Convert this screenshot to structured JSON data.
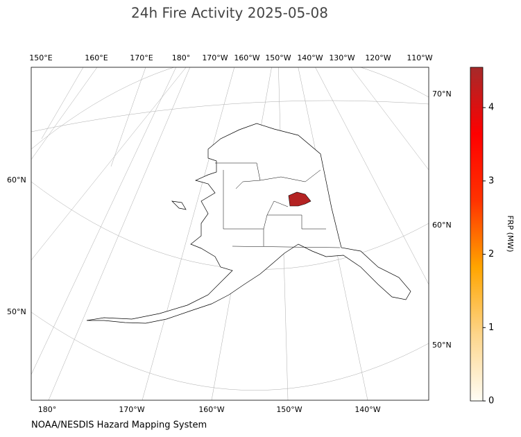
{
  "title": "24h Fire Activity 2025-05-08",
  "graticule": {
    "top": [
      "150°E",
      "160°E",
      "170°E",
      "180°",
      "170°W",
      "160°W",
      "150°W",
      "140°W",
      "130°W",
      "120°W",
      "110°W"
    ],
    "right": [
      "70°N",
      "60°N",
      "50°N"
    ],
    "left": [
      "60°N",
      "50°N"
    ],
    "bottom": [
      "180°",
      "170°W",
      "160°W",
      "150°W",
      "140°W"
    ]
  },
  "colorbar": {
    "label": "FRP (MW)",
    "lim": [
      0,
      4.55
    ],
    "ticks": [
      0,
      1,
      2,
      3,
      4
    ],
    "colors": [
      "#fffdf5",
      "#fdd58a",
      "#ffa500",
      "#ff3300",
      "#ff0000",
      "#a52a2a"
    ]
  },
  "fires": [
    {
      "frp": 4.4
    }
  ],
  "credit": "NOAA/NESDIS Hazard Mapping System"
}
